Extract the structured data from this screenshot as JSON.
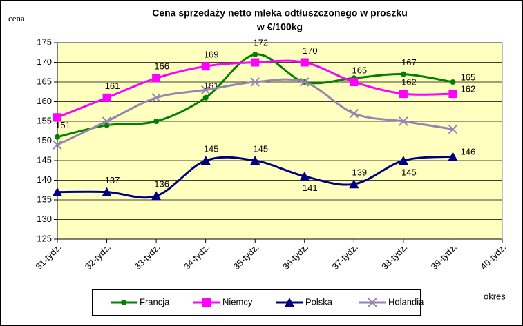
{
  "chart_data": {
    "type": "line",
    "title": "Cena sprzedaży netto mleka odtłuszczonego w proszku",
    "subtitle": "w €/100kg",
    "y_label": "cena",
    "x_label": "okres",
    "categories": [
      "31-tydz.",
      "32-tydz.",
      "33-tydz.",
      "34-tydz.",
      "35-tydz.",
      "36-tydz.",
      "37-tydz.",
      "38-tydz.",
      "39-tydz.",
      "40-tydz."
    ],
    "ylim": [
      125,
      175
    ],
    "yticks": [
      125,
      130,
      135,
      140,
      145,
      150,
      155,
      160,
      165,
      170,
      175
    ],
    "grid": true,
    "series": [
      {
        "name": "Francja",
        "color": "#008000",
        "marker": "dot",
        "values": [
          151,
          154,
          155,
          161,
          172,
          165,
          166,
          167,
          165,
          null
        ],
        "value_labels": [
          "151",
          null,
          null,
          "161",
          "172",
          null,
          null,
          "167",
          "165",
          null
        ]
      },
      {
        "name": "Niemcy",
        "color": "#ff00ff",
        "marker": "square",
        "values": [
          156,
          161,
          166,
          169,
          170,
          170,
          165,
          162,
          162,
          null
        ],
        "value_labels": [
          null,
          "161",
          "166",
          "169",
          null,
          "170",
          "165",
          "162",
          "162",
          null
        ]
      },
      {
        "name": "Polska",
        "color": "#000080",
        "marker": "triangle",
        "values": [
          137,
          137,
          136,
          145,
          145,
          141,
          139,
          145,
          146,
          null
        ],
        "value_labels": [
          null,
          "137",
          "136",
          "145",
          "145",
          "141",
          "139",
          "145",
          "146",
          null
        ]
      },
      {
        "name": "Holandia",
        "color": "#9983b5",
        "marker": "cross",
        "values": [
          149,
          155,
          161,
          163,
          165,
          165,
          157,
          155,
          153,
          null
        ],
        "value_labels": [
          null,
          null,
          null,
          null,
          null,
          null,
          null,
          null,
          null,
          null
        ]
      }
    ]
  }
}
